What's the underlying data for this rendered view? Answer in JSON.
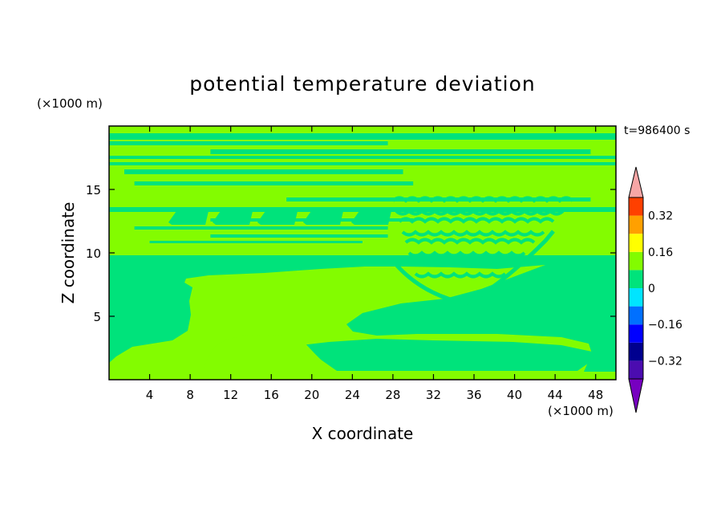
{
  "chart_data": {
    "type": "heatmap",
    "title": "potential temperature deviation",
    "time_label": "t=986400 s",
    "xlabel": "X coordinate",
    "ylabel": "Z coordinate",
    "x_unit": "(×1000 m)",
    "y_unit": "(×1000 m)",
    "xlim": [
      0,
      50
    ],
    "ylim": [
      0,
      20
    ],
    "x_ticks": [
      4,
      8,
      12,
      16,
      20,
      24,
      28,
      32,
      36,
      40,
      44,
      48
    ],
    "y_ticks": [
      5,
      10,
      15
    ],
    "colorbar": {
      "levels": [
        -0.4,
        -0.32,
        -0.24,
        -0.16,
        -0.08,
        0,
        0.08,
        0.16,
        0.24,
        0.32,
        0.4
      ],
      "labels": [
        "0.32",
        "0.16",
        "0",
        "−0.16",
        "−0.32"
      ],
      "label_values": [
        0.32,
        0.16,
        0,
        -0.16,
        -0.32
      ],
      "colors": [
        "#4b0cb0",
        "#00008f",
        "#0000ff",
        "#0070ff",
        "#00e5ff",
        "#00e37b",
        "#83fc00",
        "#ffff00",
        "#ffa000",
        "#ff4000",
        "#ff0000"
      ],
      "under_color": "#7700c0",
      "over_color": "#f6a6a6"
    },
    "regions": [
      {
        "class": "positive-layer",
        "value_range": [
          0,
          0.08
        ],
        "x": [
          0,
          50
        ],
        "z": [
          0,
          0.5
        ]
      },
      {
        "class": "negative-layer",
        "value_range": [
          -0.08,
          0
        ],
        "x": [
          0,
          50
        ],
        "z": [
          0.5,
          4
        ]
      },
      {
        "class": "positive-dome",
        "value_range": [
          0,
          0.08
        ],
        "x": [
          0,
          28
        ],
        "z": [
          0.5,
          8
        ]
      },
      {
        "class": "negative-middle",
        "value_range": [
          -0.08,
          0
        ],
        "x": [
          0,
          50
        ],
        "z": [
          4,
          10
        ]
      },
      {
        "class": "positive-upper",
        "value_range": [
          0,
          0.08
        ],
        "x": [
          0,
          50
        ],
        "z": [
          10,
          19.5
        ]
      }
    ]
  }
}
